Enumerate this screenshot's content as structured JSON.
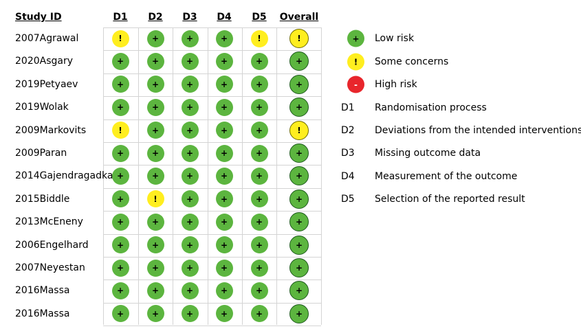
{
  "headers": {
    "study": "Study ID",
    "domains": [
      "D1",
      "D2",
      "D3",
      "D4",
      "D5",
      "Overall"
    ]
  },
  "symbols": {
    "low": "+",
    "some": "!",
    "high": "-"
  },
  "colors": {
    "low": "#5cb53f",
    "some": "#ffee1f",
    "high": "#e8262c"
  },
  "studies": [
    {
      "id": "2007Agrawal",
      "judgements": [
        "some",
        "low",
        "low",
        "low",
        "some",
        "some"
      ]
    },
    {
      "id": "2020Asgary",
      "judgements": [
        "low",
        "low",
        "low",
        "low",
        "low",
        "low"
      ]
    },
    {
      "id": "2019Petyaev",
      "judgements": [
        "low",
        "low",
        "low",
        "low",
        "low",
        "low"
      ]
    },
    {
      "id": "2019Wolak",
      "judgements": [
        "low",
        "low",
        "low",
        "low",
        "low",
        "low"
      ]
    },
    {
      "id": "2009Markovits",
      "judgements": [
        "some",
        "low",
        "low",
        "low",
        "low",
        "some"
      ]
    },
    {
      "id": "2009Paran",
      "judgements": [
        "low",
        "low",
        "low",
        "low",
        "low",
        "low"
      ]
    },
    {
      "id": "2014Gajendragadkar",
      "judgements": [
        "low",
        "low",
        "low",
        "low",
        "low",
        "low"
      ]
    },
    {
      "id": "2015Biddle",
      "judgements": [
        "low",
        "some",
        "low",
        "low",
        "low",
        "low"
      ]
    },
    {
      "id": "2013McEneny",
      "judgements": [
        "low",
        "low",
        "low",
        "low",
        "low",
        "low"
      ]
    },
    {
      "id": "2006Engelhard",
      "judgements": [
        "low",
        "low",
        "low",
        "low",
        "low",
        "low"
      ]
    },
    {
      "id": "2007Neyestan",
      "judgements": [
        "low",
        "low",
        "low",
        "low",
        "low",
        "low"
      ]
    },
    {
      "id": "2016Massa",
      "judgements": [
        "low",
        "low",
        "low",
        "low",
        "low",
        "low"
      ]
    },
    {
      "id": "2016Massa",
      "judgements": [
        "low",
        "low",
        "low",
        "low",
        "low",
        "low"
      ]
    }
  ],
  "legend": {
    "risk": [
      {
        "key": "low",
        "label": "Low risk"
      },
      {
        "key": "some",
        "label": "Some concerns"
      },
      {
        "key": "high",
        "label": "High risk"
      }
    ],
    "domains": [
      {
        "code": "D1",
        "label": "Randomisation process"
      },
      {
        "code": "D2",
        "label": "Deviations from the intended interventions"
      },
      {
        "code": "D3",
        "label": "Missing outcome data"
      },
      {
        "code": "D4",
        "label": "Measurement of the outcome"
      },
      {
        "code": "D5",
        "label": "Selection of the reported result"
      }
    ]
  }
}
